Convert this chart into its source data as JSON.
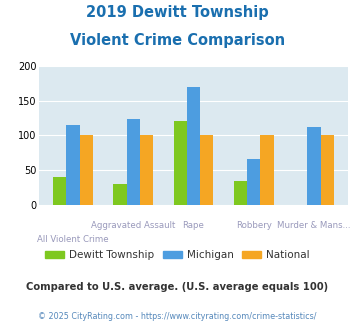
{
  "title_line1": "2019 Dewitt Township",
  "title_line2": "Violent Crime Comparison",
  "title_color": "#1a6faf",
  "dewitt": [
    40,
    30,
    120,
    34,
    0
  ],
  "michigan": [
    115,
    123,
    170,
    66,
    112
  ],
  "national": [
    100,
    100,
    100,
    100,
    100
  ],
  "dewitt_color": "#7ec820",
  "michigan_color": "#4d9de0",
  "national_color": "#f5a623",
  "bg_color": "#dce9f0",
  "ylim": [
    0,
    200
  ],
  "yticks": [
    0,
    50,
    100,
    150,
    200
  ],
  "legend_labels": [
    "Dewitt Township",
    "Michigan",
    "National"
  ],
  "top_labels": [
    "",
    "Aggravated Assault",
    "Rape",
    "Robbery",
    "Murder & Mans..."
  ],
  "bottom_labels": [
    "All Violent Crime",
    "",
    "",
    "",
    ""
  ],
  "footnote1": "Compared to U.S. average. (U.S. average equals 100)",
  "footnote2": "© 2025 CityRating.com - https://www.cityrating.com/crime-statistics/",
  "footnote1_color": "#333333",
  "footnote2_color": "#5588bb",
  "label_color": "#9999bb"
}
